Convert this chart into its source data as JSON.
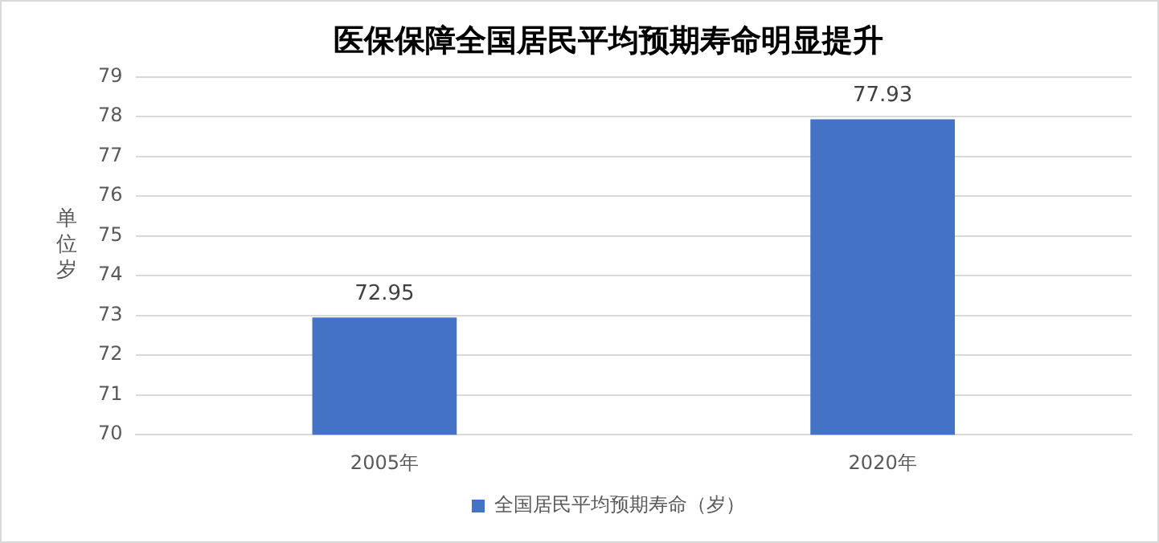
{
  "chart_data": {
    "type": "bar",
    "title": "医保保障全国居民平均预期寿命明显提升",
    "ylabel": "单位岁",
    "categories": [
      "2005年",
      "2020年"
    ],
    "series": [
      {
        "name": "全国居民平均预期寿命（岁）",
        "color": "#4472c4",
        "values": [
          72.95,
          77.93
        ]
      }
    ],
    "ylim": [
      70,
      79
    ],
    "yticks": [
      70,
      71,
      72,
      73,
      74,
      75,
      76,
      77,
      78,
      79
    ],
    "grid": "y",
    "legend": "bottom",
    "data_labels": true
  }
}
